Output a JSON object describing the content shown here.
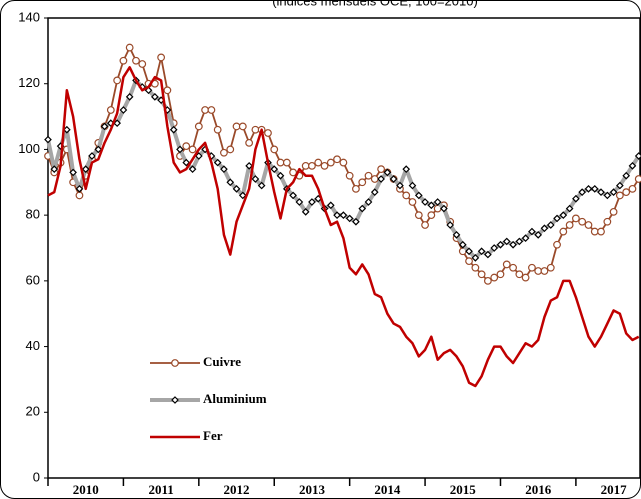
{
  "chart_data": {
    "type": "line",
    "subtitle": "(indices mensuels OCE, 100=2010)",
    "x": [
      2010,
      2010.083,
      2010.167,
      2010.25,
      2010.333,
      2010.417,
      2010.5,
      2010.583,
      2010.667,
      2010.75,
      2010.833,
      2010.917,
      2011,
      2011.083,
      2011.167,
      2011.25,
      2011.333,
      2011.417,
      2011.5,
      2011.583,
      2011.667,
      2011.75,
      2011.833,
      2011.917,
      2012,
      2012.083,
      2012.167,
      2012.25,
      2012.333,
      2012.417,
      2012.5,
      2012.583,
      2012.667,
      2012.75,
      2012.833,
      2012.917,
      2013,
      2013.083,
      2013.167,
      2013.25,
      2013.333,
      2013.417,
      2013.5,
      2013.583,
      2013.667,
      2013.75,
      2013.833,
      2013.917,
      2014,
      2014.083,
      2014.167,
      2014.25,
      2014.333,
      2014.417,
      2014.5,
      2014.583,
      2014.667,
      2014.75,
      2014.833,
      2014.917,
      2015,
      2015.083,
      2015.167,
      2015.25,
      2015.333,
      2015.417,
      2015.5,
      2015.583,
      2015.667,
      2015.75,
      2015.833,
      2015.917,
      2016,
      2016.083,
      2016.167,
      2016.25,
      2016.333,
      2016.417,
      2016.5,
      2016.583,
      2016.667,
      2016.75,
      2016.833,
      2016.917,
      2017,
      2017.083,
      2017.167,
      2017.25,
      2017.333,
      2017.417,
      2017.5,
      2017.583,
      2017.667,
      2017.75,
      2017.833
    ],
    "series": [
      {
        "name": "Cuivre",
        "color": "#9a4a2a",
        "marker": "circle",
        "values": [
          98,
          93,
          96,
          100,
          90,
          86,
          92,
          97,
          102,
          107,
          112,
          121,
          127,
          131,
          127,
          126,
          120,
          120,
          128,
          118,
          108,
          98,
          101,
          100,
          107,
          112,
          112,
          106,
          99,
          100,
          107,
          107,
          102,
          106,
          106,
          105,
          100,
          96,
          96,
          93,
          92,
          95,
          95,
          96,
          95,
          96,
          97,
          96,
          92,
          88,
          90,
          92,
          91,
          94,
          93,
          91,
          88,
          86,
          84,
          80,
          77,
          80,
          82,
          83,
          78,
          73,
          69,
          66,
          64,
          62,
          60,
          61,
          62,
          65,
          64,
          62,
          61,
          64,
          63,
          63,
          64,
          71,
          75,
          77,
          79,
          78,
          77,
          75,
          75,
          78,
          81,
          86,
          87,
          88,
          91
        ]
      },
      {
        "name": "Aluminium",
        "color": "#a6a6a6",
        "marker": "diamond",
        "values": [
          103,
          94,
          101,
          106,
          93,
          88,
          94,
          98,
          100,
          107,
          108,
          108,
          112,
          116,
          121,
          119,
          118,
          116,
          115,
          112,
          106,
          100,
          96,
          94,
          98,
          100,
          98,
          96,
          94,
          90,
          88,
          86,
          95,
          91,
          89,
          96,
          94,
          92,
          88,
          86,
          84,
          81,
          84,
          85,
          82,
          83,
          80,
          80,
          79,
          78,
          82,
          84,
          87,
          91,
          93,
          91,
          89,
          94,
          89,
          86,
          84,
          83,
          84,
          82,
          77,
          74,
          71,
          69,
          67,
          69,
          68,
          70,
          71,
          72,
          71,
          72,
          73,
          75,
          74,
          76,
          77,
          79,
          80,
          82,
          85,
          87,
          88,
          88,
          87,
          86,
          87,
          89,
          92,
          95,
          98
        ]
      },
      {
        "name": "Fer",
        "color": "#c00000",
        "marker": "none",
        "values": [
          86,
          87,
          95,
          118,
          110,
          97,
          88,
          96,
          97,
          102,
          106,
          111,
          122,
          125,
          121,
          118,
          119,
          122,
          121,
          107,
          96,
          93,
          94,
          97,
          100,
          102,
          96,
          88,
          74,
          68,
          78,
          83,
          88,
          100,
          106,
          96,
          87,
          79,
          88,
          90,
          94,
          92,
          92,
          88,
          82,
          77,
          78,
          73,
          64,
          62,
          65,
          62,
          56,
          55,
          50,
          47,
          46,
          43,
          41,
          37,
          39,
          43,
          36,
          38,
          39,
          37,
          34,
          29,
          28,
          31,
          36,
          40,
          40,
          37,
          35,
          38,
          41,
          40,
          42,
          49,
          54,
          55,
          60,
          60,
          55,
          49,
          43,
          40,
          43,
          47,
          51,
          50,
          44,
          42,
          43
        ]
      }
    ],
    "xlim": [
      2010,
      2017.85
    ],
    "xticks": [
      {
        "value": 2010,
        "label": "2010"
      },
      {
        "value": 2011,
        "label": "2011"
      },
      {
        "value": 2012,
        "label": "2012"
      },
      {
        "value": 2013,
        "label": "2013"
      },
      {
        "value": 2014,
        "label": "2014"
      },
      {
        "value": 2015,
        "label": "2015"
      },
      {
        "value": 2016,
        "label": "2016"
      },
      {
        "value": 2017,
        "label": "2017"
      }
    ],
    "ylim": [
      0,
      140
    ],
    "yticks": [
      0,
      20,
      40,
      60,
      80,
      100,
      120,
      140
    ],
    "grid": false,
    "legend": "lower left"
  }
}
